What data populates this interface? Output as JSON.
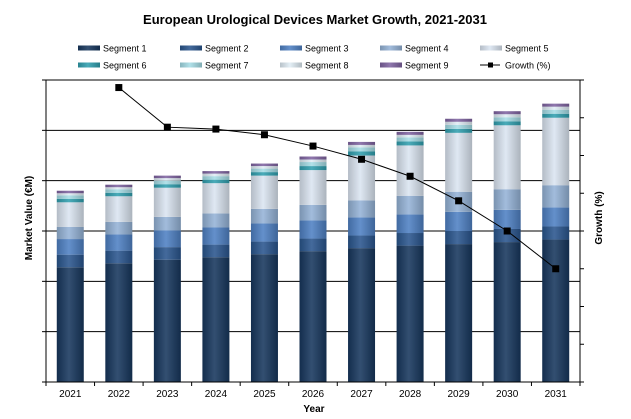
{
  "chart_data": {
    "type": "bar",
    "subtype": "stacked-bar-with-line",
    "title": "European Urological Devices Market Growth, 2021-2031",
    "xlabel": "Year",
    "ylabel": "Market Value (€M)",
    "y2label": "Growth (%)",
    "grid": true,
    "legend_position": "top",
    "categories": [
      "2021",
      "2022",
      "2023",
      "2024",
      "2025",
      "2026",
      "2027",
      "2028",
      "2029",
      "2030",
      "2031"
    ],
    "ylim": [
      0,
      6
    ],
    "y2lim": [
      0,
      16
    ],
    "series": [
      {
        "name": "Segment 1",
        "color": "#17375e",
        "values": [
          2.28,
          2.36,
          2.43,
          2.48,
          2.54,
          2.6,
          2.66,
          2.71,
          2.74,
          2.78,
          2.83
        ]
      },
      {
        "name": "Segment 2",
        "color": "#2a568e",
        "values": [
          0.25,
          0.25,
          0.25,
          0.25,
          0.25,
          0.25,
          0.25,
          0.25,
          0.26,
          0.26,
          0.26
        ]
      },
      {
        "name": "Segment 3",
        "color": "#4f81c4",
        "values": [
          0.31,
          0.32,
          0.33,
          0.34,
          0.36,
          0.36,
          0.36,
          0.37,
          0.38,
          0.38,
          0.38
        ]
      },
      {
        "name": "Segment 4",
        "color": "#95b3d7",
        "values": [
          0.24,
          0.25,
          0.27,
          0.28,
          0.29,
          0.31,
          0.34,
          0.37,
          0.4,
          0.41,
          0.44
        ]
      },
      {
        "name": "Segment 5",
        "color": "#dbe5f1",
        "values": [
          0.49,
          0.51,
          0.58,
          0.6,
          0.66,
          0.69,
          0.89,
          1.0,
          1.17,
          1.27,
          1.34
        ]
      },
      {
        "name": "Segment 6",
        "color": "#31a0b0",
        "values": [
          0.07,
          0.07,
          0.07,
          0.07,
          0.07,
          0.08,
          0.08,
          0.08,
          0.08,
          0.08,
          0.08
        ]
      },
      {
        "name": "Segment 7",
        "color": "#a6dde6",
        "values": [
          0.07,
          0.07,
          0.07,
          0.07,
          0.07,
          0.08,
          0.08,
          0.08,
          0.08,
          0.08,
          0.08
        ]
      },
      {
        "name": "Segment 8",
        "color": "#e0edf5",
        "values": [
          0.04,
          0.04,
          0.05,
          0.05,
          0.05,
          0.05,
          0.05,
          0.05,
          0.06,
          0.06,
          0.06
        ]
      },
      {
        "name": "Segment 9",
        "color": "#8064a2",
        "values": [
          0.05,
          0.05,
          0.05,
          0.05,
          0.05,
          0.06,
          0.06,
          0.06,
          0.06,
          0.06,
          0.06
        ]
      }
    ],
    "line_series": {
      "name": "Growth (%)",
      "axis": "right",
      "color": "#000000",
      "values": [
        null,
        15.6,
        13.5,
        13.4,
        13.1,
        12.5,
        11.8,
        10.9,
        9.6,
        8.0,
        6.0
      ]
    }
  }
}
